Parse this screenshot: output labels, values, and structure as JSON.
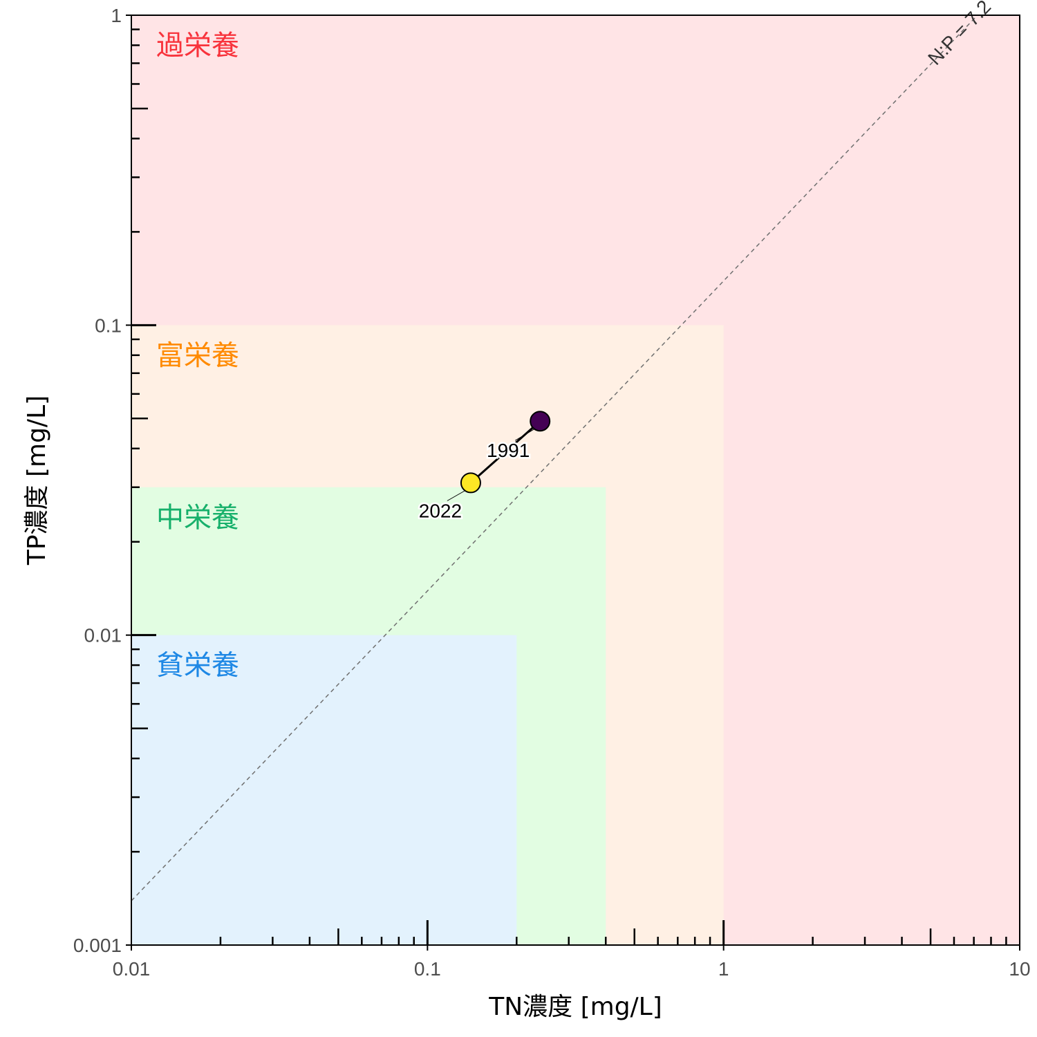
{
  "chart_data": {
    "type": "scatter",
    "title": "",
    "xlabel": "TN濃度 [mg/L]",
    "ylabel": "TP濃度 [mg/L]",
    "xscale": "log",
    "yscale": "log",
    "xlim": [
      0.01,
      10
    ],
    "ylim": [
      0.001,
      1
    ],
    "x_ticks": [
      {
        "value": 0.01,
        "label": "0.01"
      },
      {
        "value": 0.1,
        "label": "0.1"
      },
      {
        "value": 1,
        "label": "1"
      },
      {
        "value": 10,
        "label": "10"
      }
    ],
    "y_ticks": [
      {
        "value": 0.001,
        "label": "0.001"
      },
      {
        "value": 0.01,
        "label": "0.01"
      },
      {
        "value": 0.1,
        "label": "0.1"
      },
      {
        "value": 1,
        "label": "1"
      }
    ],
    "grid": false,
    "zones": [
      {
        "label": "過栄養",
        "x_max": 10,
        "y_max": 1,
        "fill": "#ffe4e6",
        "text_color": "#f8333c"
      },
      {
        "label": "富栄養",
        "x_max": 1,
        "y_max": 0.1,
        "fill": "#fff0e4",
        "text_color": "#ff8a00"
      },
      {
        "label": "中栄養",
        "x_max": 0.4,
        "y_max": 0.03,
        "fill": "#e2fde2",
        "text_color": "#17b06b"
      },
      {
        "label": "貧栄養",
        "x_max": 0.2,
        "y_max": 0.01,
        "fill": "#e3f2fd",
        "text_color": "#1e88e5"
      }
    ],
    "reference_line": {
      "label": "N:P = 7.2",
      "ratio": 7.2
    },
    "points": [
      {
        "year": "1991",
        "x": 0.24,
        "y": 0.049,
        "color": "#440154"
      },
      {
        "year": "2022",
        "x": 0.14,
        "y": 0.031,
        "color": "#fde725"
      }
    ]
  }
}
